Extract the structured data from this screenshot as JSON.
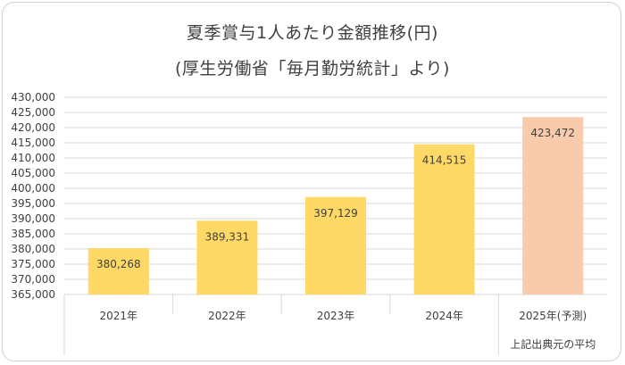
{
  "chart_data": {
    "type": "bar",
    "title": "夏季賞与1人あたり金額推移(円)",
    "subtitle": "(厚生労働省「毎月勤労統計」より)",
    "categories": [
      "2021年",
      "2022年",
      "2023年",
      "2024年",
      "2025年(予測)"
    ],
    "values": [
      380268,
      389331,
      397129,
      414515,
      423472
    ],
    "data_labels": [
      "380,268",
      "389,331",
      "397,129",
      "414,515",
      "423,472"
    ],
    "category_note": "上記出典元の平均",
    "ylim": [
      365000,
      430000
    ],
    "yticks": [
      "365,000",
      "370,000",
      "375,000",
      "380,000",
      "385,000",
      "390,000",
      "395,000",
      "400,000",
      "405,000",
      "410,000",
      "415,000",
      "420,000",
      "425,000",
      "430,000"
    ],
    "ytick_values": [
      365000,
      370000,
      375000,
      380000,
      385000,
      390000,
      395000,
      400000,
      405000,
      410000,
      415000,
      420000,
      425000,
      430000
    ],
    "grid": true,
    "colors": {
      "bar": "#ffd966",
      "forecast_bar": "#f8cbad",
      "grid": "#d9d9d9",
      "axis_text": "#404040"
    }
  }
}
